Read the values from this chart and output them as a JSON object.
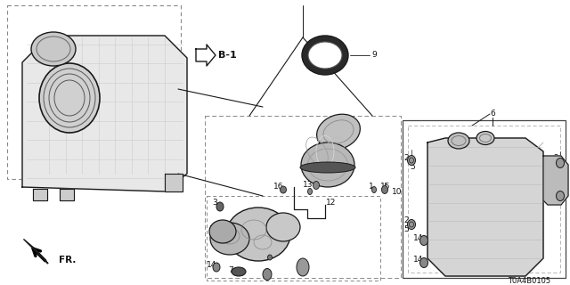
{
  "background_color": "#ffffff",
  "diagram_id": "T0A4B0105",
  "fig_width": 6.4,
  "fig_height": 3.2,
  "dpi": 100,
  "line_color": "#1a1a1a",
  "text_color": "#111111",
  "font_size": 6.5
}
